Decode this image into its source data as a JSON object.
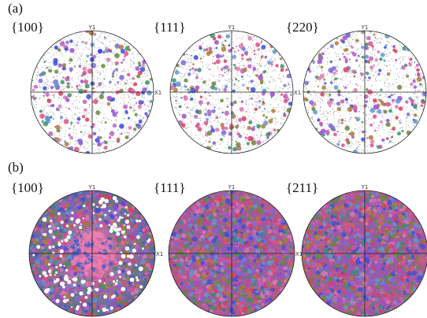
{
  "panels": [
    {
      "label": "(a)",
      "plots": [
        {
          "title": "{100}",
          "y_axis": "Y1",
          "x_axis": "X1"
        },
        {
          "title": "{111}",
          "y_axis": "Y1",
          "x_axis": "X1"
        },
        {
          "title": "{220}",
          "y_axis": "Y1",
          "x_axis": "X1"
        }
      ]
    },
    {
      "label": "(b)",
      "plots": [
        {
          "title": "{100}",
          "y_axis": "Y1",
          "x_axis": "X1"
        },
        {
          "title": "{111}",
          "y_axis": "Y1",
          "x_axis": "X1"
        },
        {
          "title": "{211}",
          "y_axis": "Y1",
          "x_axis": "X1"
        }
      ]
    }
  ]
}
